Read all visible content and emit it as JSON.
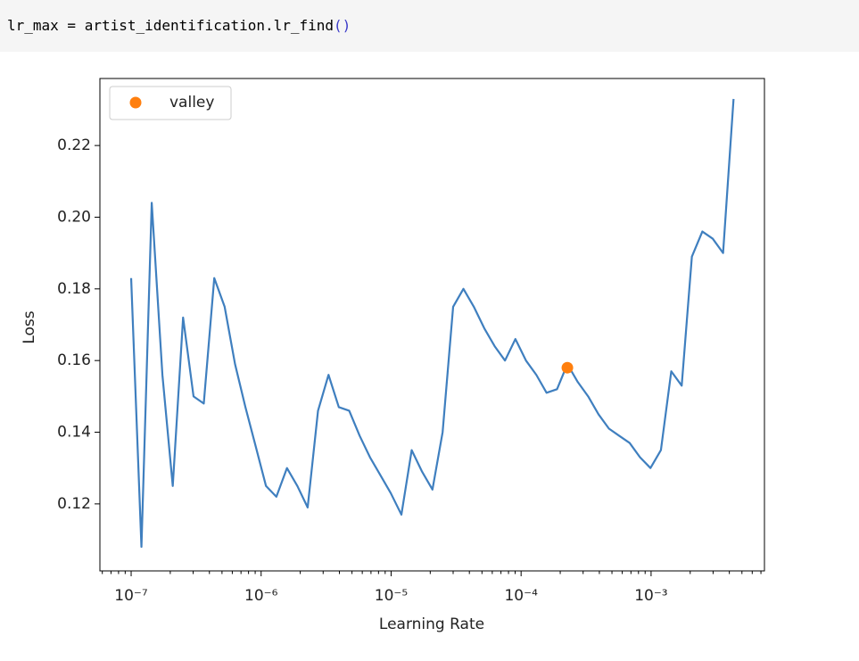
{
  "code_cell": {
    "code": "lr_max = artist_identification.lr_find",
    "call_parens": "()"
  },
  "chart_data": {
    "type": "line",
    "xlabel": "Learning Rate",
    "ylabel": "Loss",
    "xscale": "log",
    "xlim": [
      5.75e-08,
      0.00745
    ],
    "ylim": [
      0.1013,
      0.2387
    ],
    "xticks": [
      {
        "value": 1e-07,
        "label": "10⁻⁷"
      },
      {
        "value": 1e-06,
        "label": "10⁻⁶"
      },
      {
        "value": 1e-05,
        "label": "10⁻⁵"
      },
      {
        "value": 0.0001,
        "label": "10⁻⁴"
      },
      {
        "value": 0.001,
        "label": "10⁻³"
      }
    ],
    "xminor_ticks": true,
    "yticks": [
      0.12,
      0.14,
      0.16,
      0.18,
      {
        "value": 0.2,
        "label": "0.20"
      },
      0.22
    ],
    "legend": "upper left",
    "x": [
      1e-07,
      1.2e-07,
      1.44e-07,
      1.74e-07,
      2.09e-07,
      2.51e-07,
      3.02e-07,
      3.62e-07,
      4.36e-07,
      5.24e-07,
      6.3e-07,
      7.57e-07,
      9.09e-07,
      1.09e-06,
      1.31e-06,
      1.58e-06,
      1.9e-06,
      2.28e-06,
      2.74e-06,
      3.3e-06,
      3.96e-06,
      4.76e-06,
      5.73e-06,
      6.88e-06,
      8.27e-06,
      9.94e-06,
      1.2e-05,
      1.44e-05,
      1.73e-05,
      2.08e-05,
      2.49e-05,
      3e-05,
      3.6e-05,
      4.33e-05,
      5.21e-05,
      6.26e-05,
      7.52e-05,
      9.04e-05,
      0.000109,
      0.000131,
      0.000157,
      0.000189,
      0.000227,
      0.000273,
      0.000328,
      0.000394,
      0.000474,
      0.000569,
      0.000684,
      0.000822,
      0.000989,
      0.00119,
      0.00143,
      0.00172,
      0.00206,
      0.00248,
      0.00298,
      0.00358,
      0.00431
    ],
    "series": [
      {
        "color": "#3f7fbf",
        "values": [
          0.183,
          0.108,
          0.204,
          0.156,
          0.125,
          0.172,
          0.15,
          0.148,
          0.183,
          0.175,
          0.159,
          0.147,
          0.136,
          0.125,
          0.122,
          0.13,
          0.125,
          0.119,
          0.146,
          0.156,
          0.147,
          0.146,
          0.139,
          0.133,
          0.128,
          0.123,
          0.117,
          0.135,
          0.129,
          0.124,
          0.14,
          0.175,
          0.18,
          0.175,
          0.169,
          0.164,
          0.16,
          0.166,
          0.16,
          0.156,
          0.151,
          0.152,
          0.159,
          0.154,
          0.15,
          0.145,
          0.141,
          0.139,
          0.137,
          0.133,
          0.13,
          0.135,
          0.157,
          0.153,
          0.189,
          0.196,
          0.194,
          0.19,
          0.233
        ]
      },
      {
        "name": "valley",
        "color": "#ff7f0e",
        "style": "point",
        "x": [
          0.000227
        ],
        "values": [
          0.158
        ]
      }
    ]
  }
}
